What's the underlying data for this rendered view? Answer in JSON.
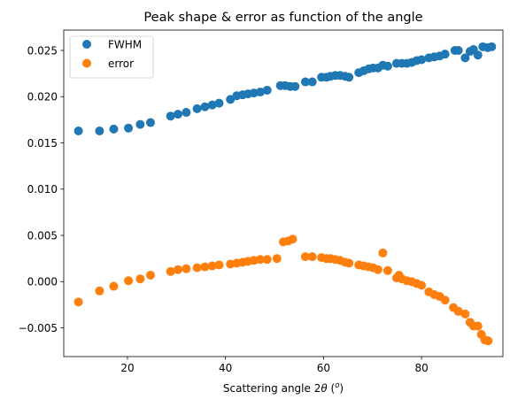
{
  "chart_data": {
    "type": "scatter",
    "title": "Peak shape & error as function of the angle",
    "xlabel": "Scattering angle 2θ (°)",
    "xlabel_parts": {
      "before": "Scattering angle 2",
      "theta": "θ",
      "after": " (",
      "degree": "o",
      "close": ")"
    },
    "ylabel": "",
    "xlim": [
      7,
      96.6
    ],
    "ylim": [
      -0.0081,
      0.0272
    ],
    "x_ticks": [
      20,
      40,
      60,
      80
    ],
    "x_tick_labels": [
      "20",
      "40",
      "60",
      "80"
    ],
    "y_ticks": [
      -0.005,
      0.0,
      0.005,
      0.01,
      0.015,
      0.02,
      0.025
    ],
    "y_tick_labels": [
      "−0.005",
      "0.000",
      "0.005",
      "0.010",
      "0.015",
      "0.020",
      "0.025"
    ],
    "grid": false,
    "legend_position": "top-left",
    "series": [
      {
        "name": "FWHM",
        "color": "#1f77b4",
        "points": [
          [
            10.0,
            0.0163
          ],
          [
            14.3,
            0.0163
          ],
          [
            17.2,
            0.0165
          ],
          [
            20.2,
            0.0166
          ],
          [
            22.6,
            0.017
          ],
          [
            24.7,
            0.0172
          ],
          [
            28.8,
            0.0179
          ],
          [
            30.3,
            0.0181
          ],
          [
            32.0,
            0.0183
          ],
          [
            34.2,
            0.0187
          ],
          [
            35.8,
            0.0189
          ],
          [
            37.3,
            0.0191
          ],
          [
            38.7,
            0.0193
          ],
          [
            41.0,
            0.0197
          ],
          [
            42.3,
            0.0201
          ],
          [
            43.5,
            0.0202
          ],
          [
            44.6,
            0.0203
          ],
          [
            45.8,
            0.0204
          ],
          [
            47.1,
            0.0205
          ],
          [
            48.5,
            0.0207
          ],
          [
            51.2,
            0.0212
          ],
          [
            52.2,
            0.0212
          ],
          [
            53.2,
            0.0211
          ],
          [
            54.2,
            0.0211
          ],
          [
            56.3,
            0.0216
          ],
          [
            57.7,
            0.0216
          ],
          [
            59.6,
            0.0221
          ],
          [
            60.6,
            0.0221
          ],
          [
            61.4,
            0.0222
          ],
          [
            62.4,
            0.0223
          ],
          [
            63.4,
            0.0223
          ],
          [
            64.4,
            0.0222
          ],
          [
            65.2,
            0.0221
          ],
          [
            67.2,
            0.0226
          ],
          [
            68.2,
            0.0228
          ],
          [
            69.2,
            0.023
          ],
          [
            70.1,
            0.0231
          ],
          [
            71.1,
            0.0231
          ],
          [
            72.1,
            0.0234
          ],
          [
            73.1,
            0.0233
          ],
          [
            74.9,
            0.0236
          ],
          [
            76.0,
            0.0236
          ],
          [
            77.0,
            0.0236
          ],
          [
            78.0,
            0.0237
          ],
          [
            79.0,
            0.0239
          ],
          [
            80.0,
            0.024
          ],
          [
            81.5,
            0.0242
          ],
          [
            82.6,
            0.0243
          ],
          [
            83.7,
            0.0244
          ],
          [
            84.8,
            0.0246
          ],
          [
            86.8,
            0.025
          ],
          [
            87.5,
            0.025
          ],
          [
            88.9,
            0.0242
          ],
          [
            89.9,
            0.0249
          ],
          [
            90.6,
            0.0251
          ],
          [
            91.5,
            0.0245
          ],
          [
            92.5,
            0.0254
          ],
          [
            93.5,
            0.0253
          ],
          [
            94.3,
            0.0254
          ]
        ]
      },
      {
        "name": "error",
        "color": "#ff7f0e",
        "points": [
          [
            10.0,
            -0.0022
          ],
          [
            14.3,
            -0.001
          ],
          [
            17.2,
            -0.0005
          ],
          [
            20.2,
            0.0001
          ],
          [
            22.6,
            0.0003
          ],
          [
            24.7,
            0.0007
          ],
          [
            28.8,
            0.0011
          ],
          [
            30.3,
            0.0013
          ],
          [
            32.0,
            0.0014
          ],
          [
            34.2,
            0.0015
          ],
          [
            35.8,
            0.0016
          ],
          [
            37.3,
            0.0017
          ],
          [
            38.7,
            0.0018
          ],
          [
            41.0,
            0.0019
          ],
          [
            42.3,
            0.002
          ],
          [
            43.5,
            0.0021
          ],
          [
            44.6,
            0.0022
          ],
          [
            45.8,
            0.0023
          ],
          [
            47.1,
            0.0024
          ],
          [
            48.5,
            0.0024
          ],
          [
            50.5,
            0.0025
          ],
          [
            51.8,
            0.0043
          ],
          [
            52.8,
            0.0044
          ],
          [
            53.7,
            0.0046
          ],
          [
            56.3,
            0.0027
          ],
          [
            57.7,
            0.0027
          ],
          [
            59.6,
            0.0026
          ],
          [
            60.6,
            0.0025
          ],
          [
            61.4,
            0.0025
          ],
          [
            62.4,
            0.0024
          ],
          [
            63.4,
            0.0023
          ],
          [
            64.4,
            0.0021
          ],
          [
            65.2,
            0.002
          ],
          [
            67.2,
            0.0018
          ],
          [
            68.2,
            0.0017
          ],
          [
            69.2,
            0.0016
          ],
          [
            70.1,
            0.0015
          ],
          [
            71.1,
            0.0013
          ],
          [
            72.1,
            0.0031
          ],
          [
            73.1,
            0.0012
          ],
          [
            74.9,
            0.0004
          ],
          [
            75.4,
            0.0007
          ],
          [
            76.0,
            0.0003
          ],
          [
            77.0,
            0.0001
          ],
          [
            78.0,
            0.0
          ],
          [
            79.0,
            -0.0002
          ],
          [
            80.0,
            -0.0004
          ],
          [
            81.5,
            -0.0011
          ],
          [
            82.6,
            -0.0014
          ],
          [
            83.7,
            -0.0016
          ],
          [
            84.8,
            -0.002
          ],
          [
            86.5,
            -0.0028
          ],
          [
            87.5,
            -0.0032
          ],
          [
            88.9,
            -0.0035
          ],
          [
            89.9,
            -0.0044
          ],
          [
            90.6,
            -0.0048
          ],
          [
            91.5,
            -0.0048
          ],
          [
            92.2,
            -0.0057
          ],
          [
            92.9,
            -0.0063
          ],
          [
            93.6,
            -0.0064
          ]
        ]
      }
    ]
  }
}
